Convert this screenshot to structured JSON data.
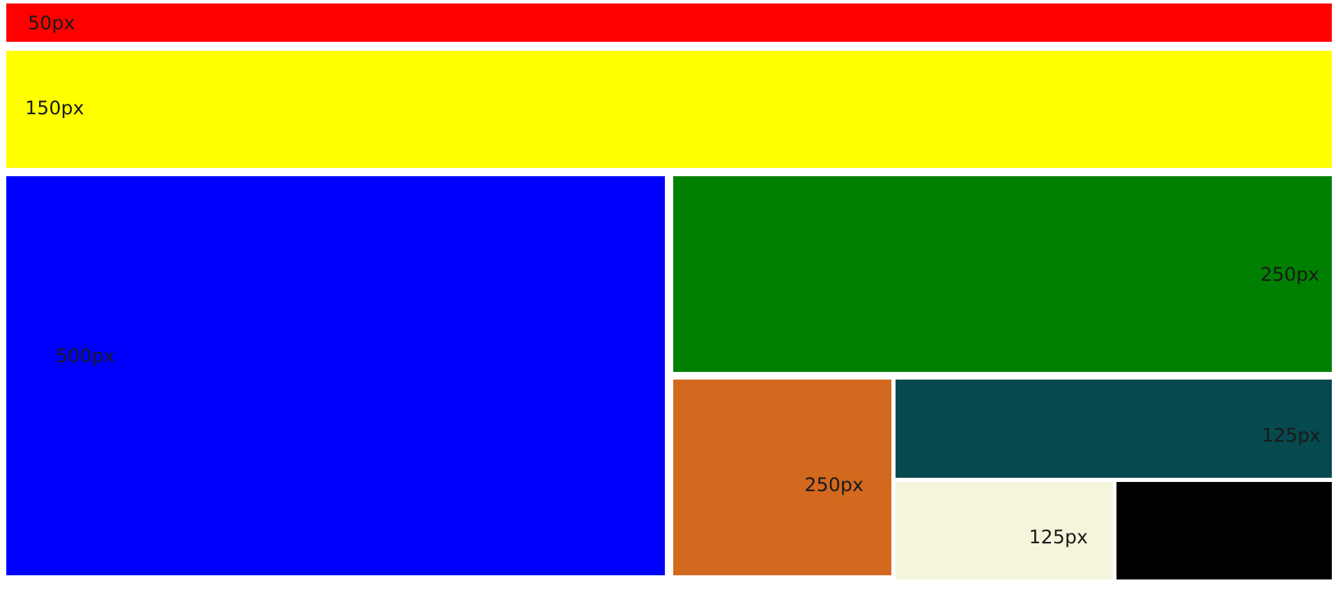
{
  "boxes": {
    "red": {
      "label": "50px",
      "color": "#ff0000"
    },
    "yellow": {
      "label": "150px",
      "color": "#ffff00"
    },
    "blue": {
      "label": "500px",
      "color": "#0000ff"
    },
    "green": {
      "label": "250px",
      "color": "#008000"
    },
    "orange": {
      "label": "250px",
      "color": "#d2691e"
    },
    "teal": {
      "label": "125px",
      "color": "#064a4f"
    },
    "beige": {
      "label": "125px",
      "color": "#f5f5dc"
    },
    "black": {
      "label": "",
      "color": "#000000"
    }
  }
}
